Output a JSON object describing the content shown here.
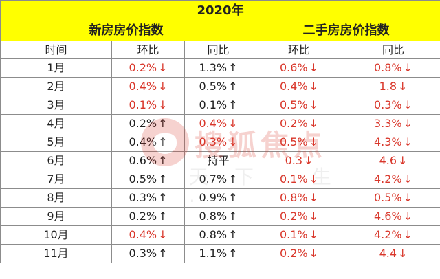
{
  "title": "2020年",
  "groups": [
    "新房房价指数",
    "二手房房价指数"
  ],
  "headers": [
    "时间",
    "环比",
    "同比",
    "环比",
    "同比"
  ],
  "watermark": {
    "brand": "搜狐焦点",
    "sub": "天下·生·"
  },
  "colors": {
    "header_bg": "#ffff00",
    "down_red": "#d9372b",
    "border": "#8c8c8c"
  },
  "rows": [
    {
      "month": "1月",
      "new_mom": {
        "text": "0.2%",
        "dir": "down"
      },
      "new_yoy": {
        "text": "1.3%",
        "dir": "up"
      },
      "sec_mom": {
        "text": "0.6%",
        "dir": "down"
      },
      "sec_yoy": {
        "text": "0.8%",
        "dir": "down"
      }
    },
    {
      "month": "2月",
      "new_mom": {
        "text": "0.4%",
        "dir": "down"
      },
      "new_yoy": {
        "text": "0.5%",
        "dir": "up"
      },
      "sec_mom": {
        "text": "0.4%",
        "dir": "down"
      },
      "sec_yoy": {
        "text": "1.8",
        "dir": "down"
      }
    },
    {
      "month": "3月",
      "new_mom": {
        "text": "0.1%",
        "dir": "down"
      },
      "new_yoy": {
        "text": "0.1%",
        "dir": "up"
      },
      "sec_mom": {
        "text": "0.5%",
        "dir": "down"
      },
      "sec_yoy": {
        "text": "0.3%",
        "dir": "down"
      }
    },
    {
      "month": "4月",
      "new_mom": {
        "text": "0.2%",
        "dir": "up"
      },
      "new_yoy": {
        "text": "0.4%",
        "dir": "down"
      },
      "sec_mom": {
        "text": "0.2%",
        "dir": "down"
      },
      "sec_yoy": {
        "text": "3.3%",
        "dir": "down"
      }
    },
    {
      "month": "5月",
      "new_mom": {
        "text": "0.4%",
        "dir": "up"
      },
      "new_yoy": {
        "text": "0.3%",
        "dir": "down"
      },
      "sec_mom": {
        "text": "0.5%",
        "dir": "down"
      },
      "sec_yoy": {
        "text": "4.3%",
        "dir": "down"
      }
    },
    {
      "month": "6月",
      "new_mom": {
        "text": "0.6%",
        "dir": "up"
      },
      "new_yoy": {
        "text": "持平",
        "dir": "flat"
      },
      "sec_mom": {
        "text": "0.3",
        "dir": "down"
      },
      "sec_yoy": {
        "text": "4.6",
        "dir": "down"
      }
    },
    {
      "month": "7月",
      "new_mom": {
        "text": "0.5%",
        "dir": "up"
      },
      "new_yoy": {
        "text": "0.7%",
        "dir": "up"
      },
      "sec_mom": {
        "text": "0.1%",
        "dir": "down"
      },
      "sec_yoy": {
        "text": "4.2%",
        "dir": "down"
      }
    },
    {
      "month": "8月",
      "new_mom": {
        "text": "0.3%",
        "dir": "up"
      },
      "new_yoy": {
        "text": "0.9%",
        "dir": "up"
      },
      "sec_mom": {
        "text": "0.8%",
        "dir": "down"
      },
      "sec_yoy": {
        "text": "0.5%",
        "dir": "down"
      }
    },
    {
      "month": "9月",
      "new_mom": {
        "text": "0.2%",
        "dir": "up"
      },
      "new_yoy": {
        "text": "0.8%",
        "dir": "up"
      },
      "sec_mom": {
        "text": "0.2%",
        "dir": "down"
      },
      "sec_yoy": {
        "text": "4.6%",
        "dir": "down"
      }
    },
    {
      "month": "10月",
      "new_mom": {
        "text": "0.4%",
        "dir": "down"
      },
      "new_yoy": {
        "text": "0.8%",
        "dir": "up"
      },
      "sec_mom": {
        "text": "0.1%",
        "dir": "down"
      },
      "sec_yoy": {
        "text": "4.2%",
        "dir": "down"
      }
    },
    {
      "month": "11月",
      "new_mom": {
        "text": "0.3%",
        "dir": "up"
      },
      "new_yoy": {
        "text": "1.1%",
        "dir": "up"
      },
      "sec_mom": {
        "text": "0.2%",
        "dir": "down"
      },
      "sec_yoy": {
        "text": "4.4",
        "dir": "down"
      }
    }
  ]
}
